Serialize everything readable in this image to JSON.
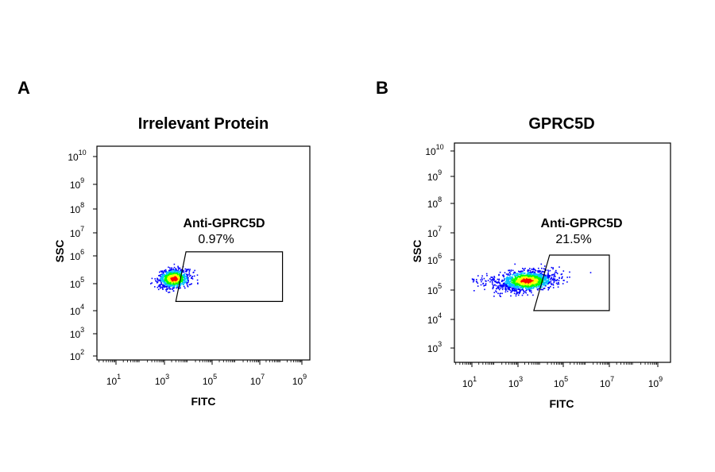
{
  "panels": [
    {
      "letter": "A",
      "title": "Irrelevant Protein",
      "gate_label": "Anti-GPRC5D",
      "gate_percent": "0.97%",
      "xlabel": "FITC",
      "ylabel": "SSC"
    },
    {
      "letter": "B",
      "title": "GPRC5D",
      "gate_label": "Anti-GPRC5D",
      "gate_percent": "21.5%",
      "xlabel": "FITC",
      "ylabel": "SSC"
    }
  ],
  "chart_data": [
    {
      "type": "scatter",
      "title": "Irrelevant Protein",
      "xlabel": "FITC",
      "ylabel": "SSC",
      "x_scale": "log10",
      "y_scale": "log10",
      "xlim": [
        1,
        1000000000
      ],
      "ylim": [
        50,
        10000000000
      ],
      "x_ticks": [
        "10^1",
        "10^3",
        "10^5",
        "10^7",
        "10^9"
      ],
      "y_ticks": [
        "10^2",
        "10^3",
        "10^4",
        "10^5",
        "10^6",
        "10^7",
        "10^8",
        "10^9",
        "10^10"
      ],
      "population": {
        "center": [
          2500,
          150000
        ],
        "x_range": [
          400,
          50000
        ],
        "y_range": [
          50000,
          500000
        ],
        "density_colors": [
          "#0000ff",
          "#00bfff",
          "#00ff00",
          "#ffff00",
          "#ff0000"
        ]
      },
      "gate": {
        "name": "Anti-GPRC5D",
        "percent": 0.97,
        "vertices": [
          [
            8000,
            1500000
          ],
          [
            120000000,
            1500000
          ],
          [
            120000000,
            22000
          ],
          [
            3000,
            22000
          ]
        ]
      }
    },
    {
      "type": "scatter",
      "title": "GPRC5D",
      "xlabel": "FITC",
      "ylabel": "SSC",
      "x_scale": "log10",
      "y_scale": "log10",
      "xlim": [
        1,
        1000000000
      ],
      "ylim": [
        300,
        10000000000
      ],
      "x_ticks": [
        "10^1",
        "10^3",
        "10^5",
        "10^7",
        "10^9"
      ],
      "y_ticks": [
        "10^3",
        "10^4",
        "10^5",
        "10^6",
        "10^7",
        "10^8",
        "10^9",
        "10^10"
      ],
      "population": {
        "center": [
          2500,
          200000
        ],
        "x_range": [
          30,
          2000000
        ],
        "y_range": [
          60000,
          600000
        ],
        "density_colors": [
          "#0000ff",
          "#00bfff",
          "#00ff00",
          "#ffff00",
          "#ff0000"
        ]
      },
      "gate": {
        "name": "Anti-GPRC5D",
        "percent": 21.5,
        "vertices": [
          [
            25000,
            1500000
          ],
          [
            10000000,
            1500000
          ],
          [
            10000000,
            20000
          ],
          [
            5000,
            20000
          ]
        ]
      }
    }
  ]
}
